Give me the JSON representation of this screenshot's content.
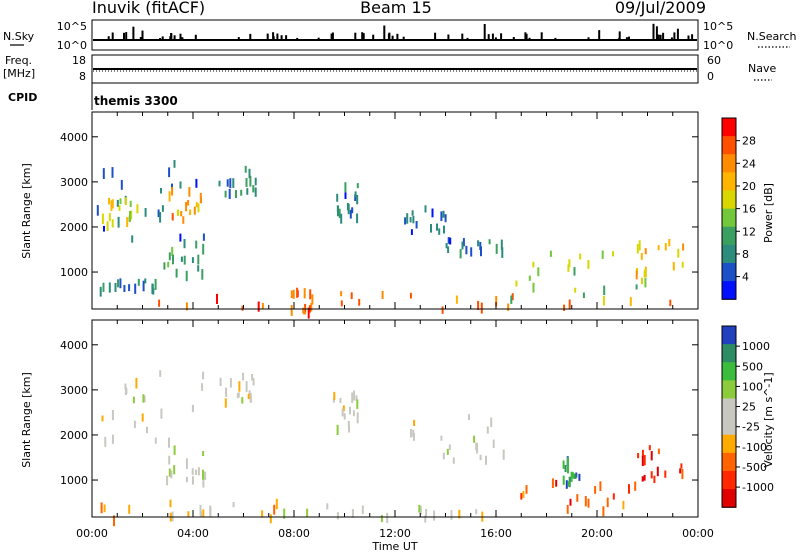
{
  "header": {
    "station": "Inuvik (fitACF)",
    "beam": "Beam 15",
    "date": "09/Jul/2009"
  },
  "noise_panel": {
    "left_label": "N.Sky",
    "right_label": "N.Search",
    "left_ticks": [
      "10^5",
      "10^0"
    ],
    "right_ticks": [
      "10^5",
      "10^0"
    ]
  },
  "freq_panel": {
    "left_label": "Freq.",
    "left_unit": "[MHz]",
    "right_label": "Nave",
    "left_ticks": [
      "18",
      "8"
    ],
    "right_ticks": [
      "60",
      "0"
    ]
  },
  "cpid_panel": {
    "label": "CPID",
    "value": "themis 3300"
  },
  "power_panel": {
    "ylabel": "Slant Range [km]",
    "cbar_label": "Power [dB]",
    "cbar_ticks": [
      "28",
      "24",
      "20",
      "16",
      "12",
      "8",
      "4"
    ],
    "cbar_colors": [
      "#ff0000",
      "#ff5000",
      "#ff8c00",
      "#ffb400",
      "#d8d800",
      "#72c83a",
      "#3aa060",
      "#2c8c7c",
      "#1c50c8",
      "#0010ff"
    ]
  },
  "velocity_panel": {
    "ylabel": "Slant Range [km]",
    "cbar_label": "Velocity [m s^-1]",
    "cbar_ticks": [
      "1000",
      "500",
      "100",
      "25",
      "-25",
      "-100",
      "-500",
      "-1000"
    ],
    "cbar_colors": [
      "#2040c0",
      "#2d8c64",
      "#3cbc3c",
      "#8ccc3c",
      "#c8c8c0",
      "#c8c8c0",
      "#ffaa00",
      "#ff6400",
      "#ff2800",
      "#e00000"
    ]
  },
  "x_axis": {
    "label": "Time UT",
    "ticks": [
      "00:00",
      "04:00",
      "08:00",
      "12:00",
      "16:00",
      "20:00",
      "00:00"
    ]
  },
  "chart_data": [
    {
      "type": "heatmap",
      "title": "Power",
      "xlabel": "Time UT",
      "ylabel": "Slant Range [km]",
      "xlim": [
        0,
        24
      ],
      "ylim": [
        180,
        4550
      ],
      "y_ticks": [
        1000,
        2000,
        3000,
        4000
      ],
      "zlabel": "Power [dB]",
      "zlim": [
        0,
        32
      ],
      "echo_regions": [
        {
          "t0": 0.0,
          "t1": 23.5,
          "r0": 200,
          "r1": 600,
          "v": 26
        },
        {
          "t0": 0.0,
          "t1": 3.5,
          "r0": 600,
          "r1": 900,
          "v": 8
        },
        {
          "t0": 0.0,
          "t1": 4.5,
          "r0": 1800,
          "r1": 3500,
          "v": 6
        },
        {
          "t0": 0.3,
          "t1": 1.8,
          "r0": 2100,
          "r1": 2700,
          "v": 18
        },
        {
          "t0": 3.0,
          "t1": 4.3,
          "r0": 2200,
          "r1": 2900,
          "v": 22
        },
        {
          "t0": 2.8,
          "t1": 4.5,
          "r0": 1000,
          "r1": 1800,
          "v": 12
        },
        {
          "t0": 5.0,
          "t1": 6.5,
          "r0": 2800,
          "r1": 3400,
          "v": 8
        },
        {
          "t0": 7.8,
          "t1": 8.8,
          "r0": 200,
          "r1": 700,
          "v": 26
        },
        {
          "t0": 9.5,
          "t1": 10.5,
          "r0": 2200,
          "r1": 3000,
          "v": 7
        },
        {
          "t0": 12.2,
          "t1": 14.0,
          "r0": 1900,
          "r1": 2500,
          "v": 6
        },
        {
          "t0": 14.0,
          "t1": 16.5,
          "r0": 1500,
          "r1": 1800,
          "v": 7
        },
        {
          "t0": 16.5,
          "t1": 22.0,
          "r0": 400,
          "r1": 1600,
          "v": 16
        },
        {
          "t0": 21.5,
          "t1": 23.5,
          "r0": 1000,
          "r1": 1800,
          "v": 20
        }
      ]
    },
    {
      "type": "heatmap",
      "title": "Velocity",
      "xlabel": "Time UT",
      "ylabel": "Slant Range [km]",
      "xlim": [
        0,
        24
      ],
      "ylim": [
        180,
        4550
      ],
      "y_ticks": [
        1000,
        2000,
        3000,
        4000
      ],
      "zlabel": "Velocity [m s^-1]",
      "zlim": [
        -1000,
        1000
      ],
      "echo_regions": [
        {
          "t0": 0.0,
          "t1": 7.5,
          "r0": 200,
          "r1": 600,
          "v": -300
        },
        {
          "t0": 7.5,
          "t1": 16.0,
          "r0": 200,
          "r1": 500,
          "v": 0
        },
        {
          "t0": 0.0,
          "t1": 4.5,
          "r0": 1800,
          "r1": 3500,
          "v": 0
        },
        {
          "t0": 2.8,
          "t1": 4.5,
          "r0": 1000,
          "r1": 1800,
          "v": 150
        },
        {
          "t0": 5.0,
          "t1": 6.5,
          "r0": 2800,
          "r1": 3400,
          "v": 0
        },
        {
          "t0": 9.5,
          "t1": 10.5,
          "r0": 2200,
          "r1": 3000,
          "v": 0
        },
        {
          "t0": 12.2,
          "t1": 16.5,
          "r0": 1500,
          "r1": 2500,
          "v": 0
        },
        {
          "t0": 16.5,
          "t1": 21.5,
          "r0": 400,
          "r1": 1100,
          "v": -600
        },
        {
          "t0": 18.5,
          "t1": 19.3,
          "r0": 900,
          "r1": 1600,
          "v": 700
        },
        {
          "t0": 21.5,
          "t1": 23.5,
          "r0": 1000,
          "r1": 1800,
          "v": -800
        }
      ]
    }
  ]
}
